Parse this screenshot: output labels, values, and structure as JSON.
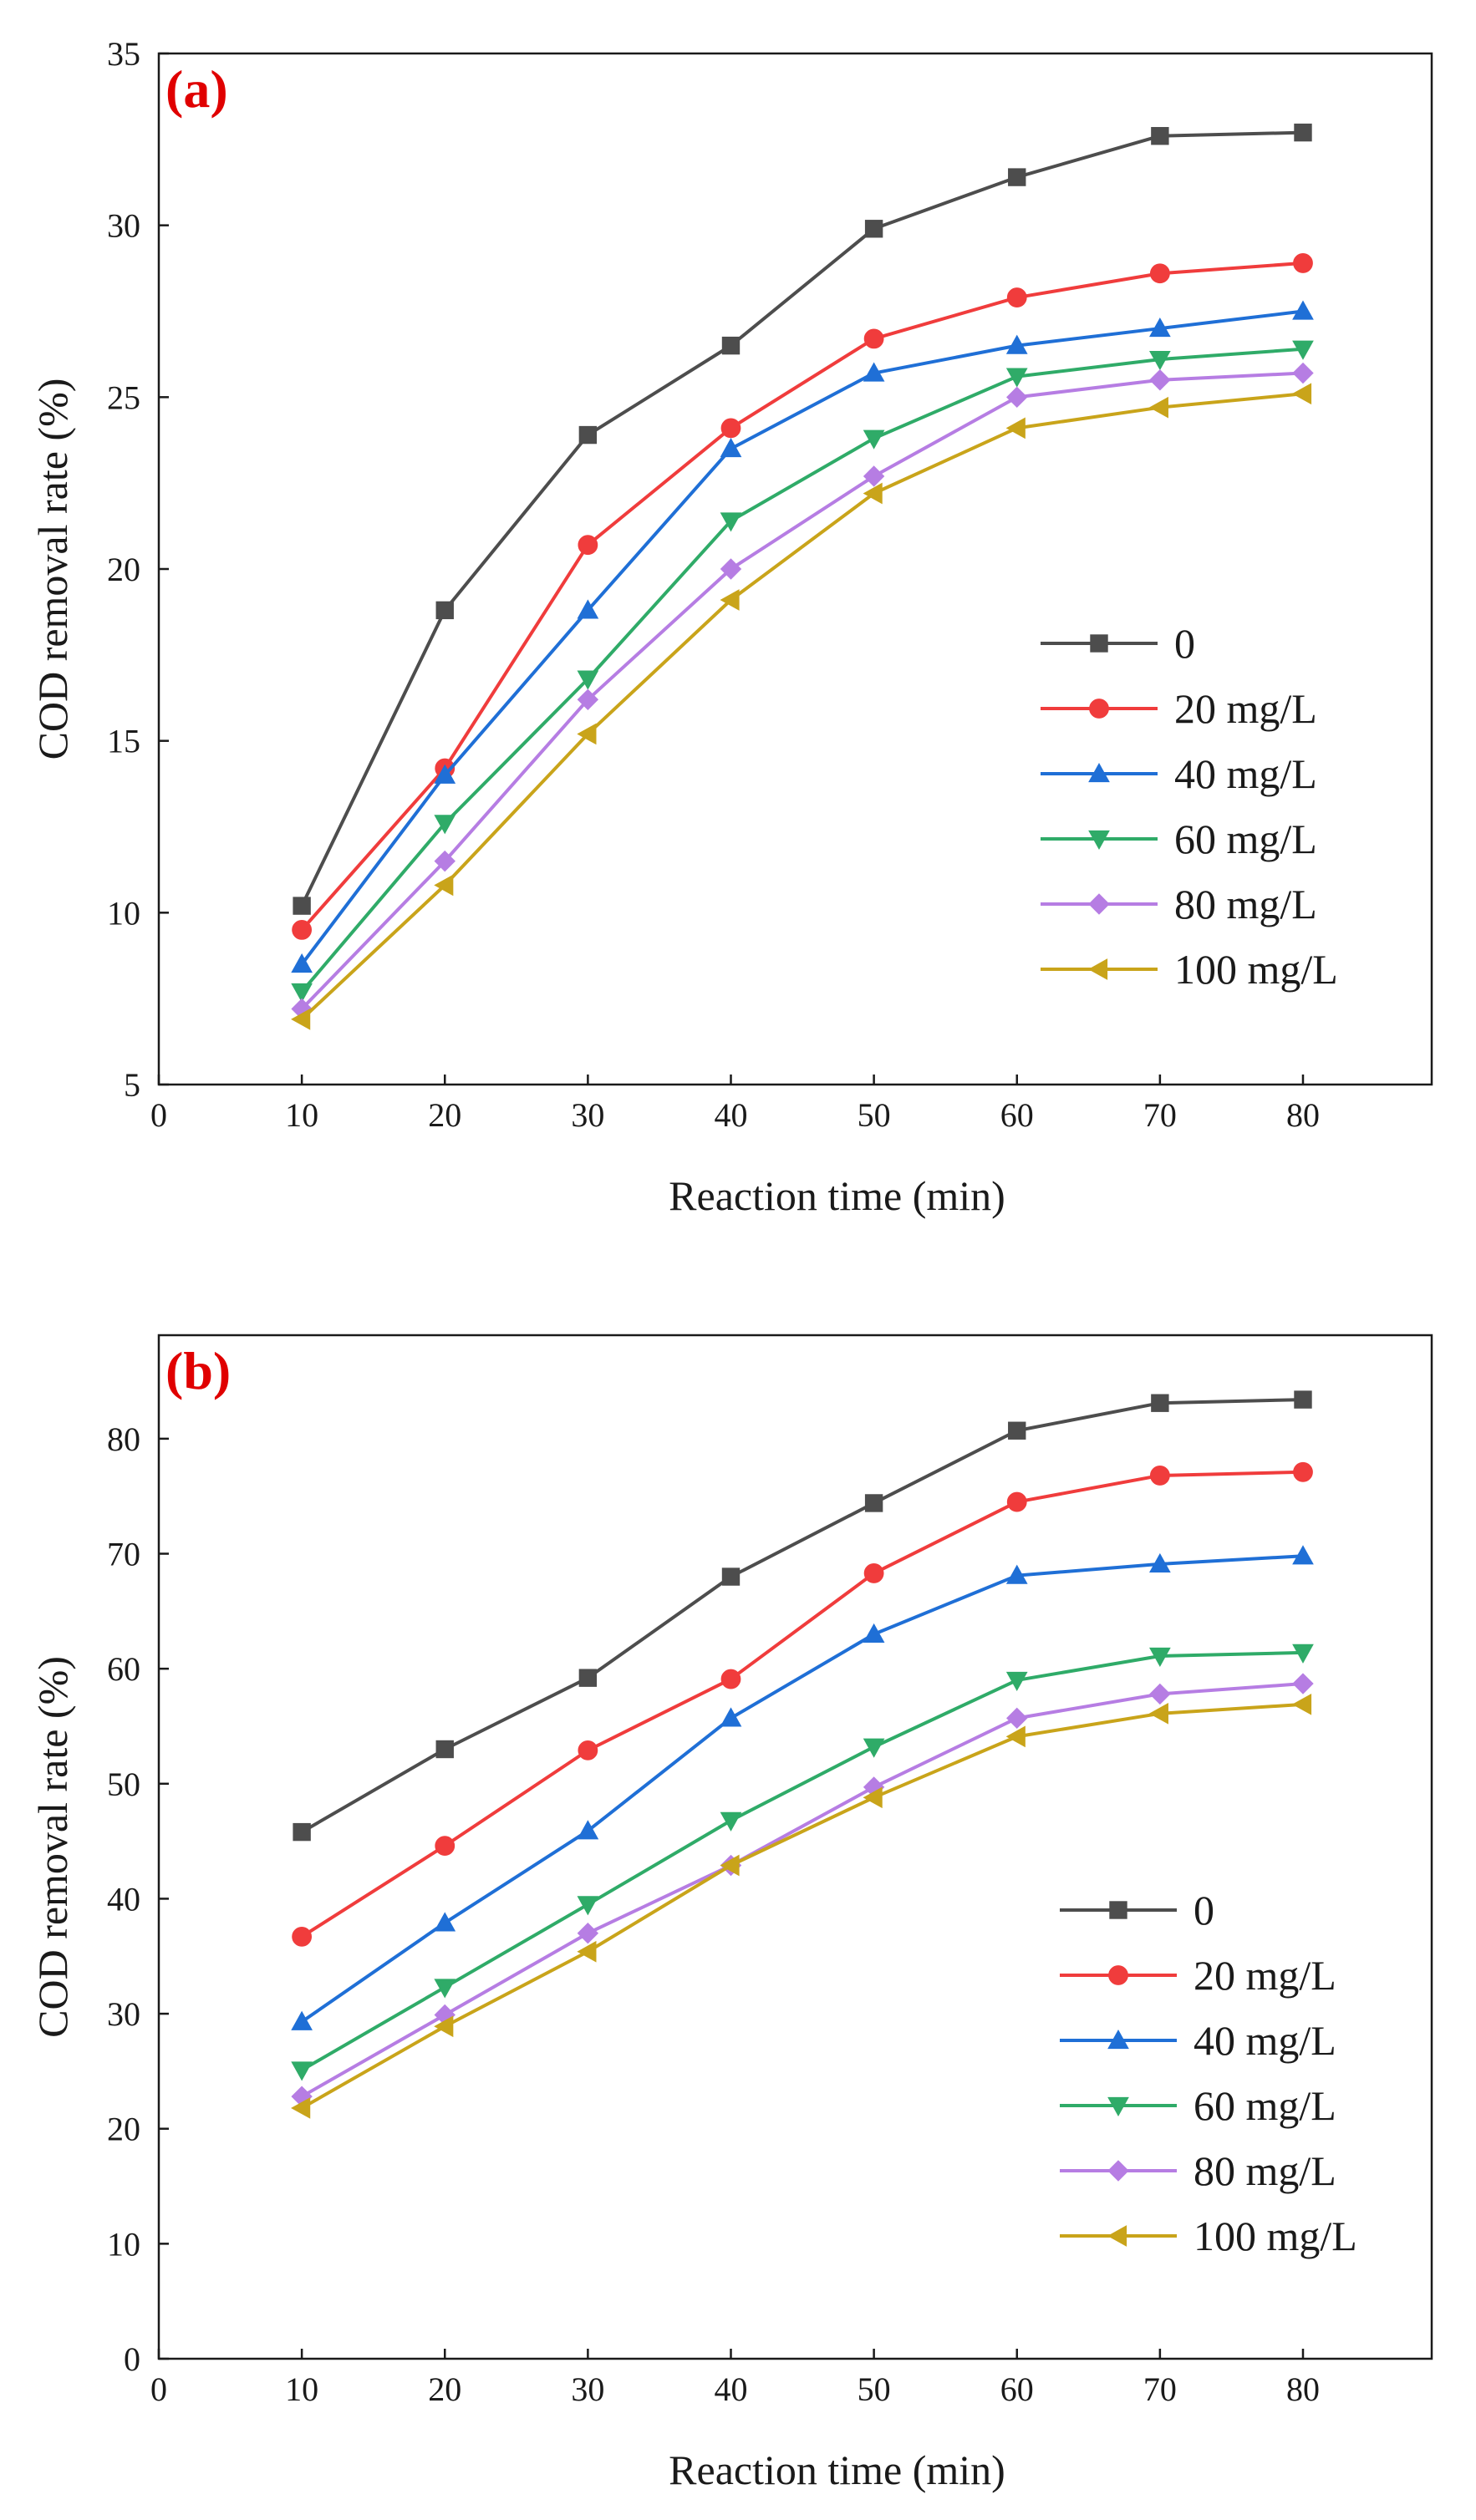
{
  "figure": {
    "panels": [
      "a",
      "b"
    ]
  },
  "chart_data": [
    {
      "type": "line",
      "panel_label": "(a)",
      "panel_label_color": "#e00000",
      "xlabel": "Reaction time (min)",
      "ylabel": "COD removal rate (%)",
      "xlim": [
        0,
        89
      ],
      "ylim": [
        5,
        35
      ],
      "xticks": [
        0,
        10,
        20,
        30,
        40,
        50,
        60,
        70,
        80
      ],
      "yticks": [
        5,
        10,
        15,
        20,
        25,
        30,
        35
      ],
      "grid": false,
      "legend_position": "right",
      "x": [
        10,
        20,
        30,
        40,
        50,
        60,
        70,
        80
      ],
      "series": [
        {
          "name": "0",
          "marker": "square",
          "color": "#4d4d4d",
          "values": [
            10.2,
            18.8,
            23.9,
            26.5,
            29.9,
            31.4,
            32.6,
            32.7
          ]
        },
        {
          "name": "20 mg/L",
          "marker": "circle",
          "color": "#f03c3c",
          "values": [
            9.5,
            14.2,
            20.7,
            24.1,
            26.7,
            27.9,
            28.6,
            28.9
          ]
        },
        {
          "name": "40 mg/L",
          "marker": "triangle-up",
          "color": "#1f6fd6",
          "values": [
            8.5,
            14.0,
            18.8,
            23.5,
            25.7,
            26.5,
            27.0,
            27.5
          ]
        },
        {
          "name": "60 mg/L",
          "marker": "triangle-down",
          "color": "#2fab68",
          "values": [
            7.7,
            12.6,
            16.8,
            21.4,
            23.8,
            25.6,
            26.1,
            26.4
          ]
        },
        {
          "name": "80 mg/L",
          "marker": "diamond",
          "color": "#b67de3",
          "values": [
            7.2,
            11.5,
            16.2,
            20.0,
            22.7,
            25.0,
            25.5,
            25.7
          ]
        },
        {
          "name": "100 mg/L",
          "marker": "triangle-left",
          "color": "#c9a41a",
          "values": [
            6.9,
            10.8,
            15.2,
            19.1,
            22.2,
            24.1,
            24.7,
            25.1
          ]
        }
      ]
    },
    {
      "type": "line",
      "panel_label": "(b)",
      "panel_label_color": "#e00000",
      "xlabel": "Reaction time (min)",
      "ylabel": "COD removal rate (%)",
      "xlim": [
        0,
        89
      ],
      "ylim": [
        0,
        89
      ],
      "xticks": [
        0,
        10,
        20,
        30,
        40,
        50,
        60,
        70,
        80
      ],
      "yticks": [
        0,
        10,
        20,
        30,
        40,
        50,
        60,
        70,
        80
      ],
      "grid": false,
      "legend_position": "bottom-right",
      "x": [
        10,
        20,
        30,
        40,
        50,
        60,
        70,
        80
      ],
      "series": [
        {
          "name": "0",
          "marker": "square",
          "color": "#4d4d4d",
          "values": [
            45.8,
            53.0,
            59.2,
            68.0,
            74.4,
            80.7,
            83.1,
            83.4
          ]
        },
        {
          "name": "20 mg/L",
          "marker": "circle",
          "color": "#f03c3c",
          "values": [
            36.7,
            44.6,
            52.9,
            59.1,
            68.3,
            74.5,
            76.8,
            77.1
          ]
        },
        {
          "name": "40 mg/L",
          "marker": "triangle-up",
          "color": "#1f6fd6",
          "values": [
            29.3,
            37.9,
            45.9,
            55.7,
            63.0,
            68.1,
            69.1,
            69.8
          ]
        },
        {
          "name": "60 mg/L",
          "marker": "triangle-down",
          "color": "#2fab68",
          "values": [
            25.1,
            32.3,
            39.5,
            46.8,
            53.2,
            59.0,
            61.1,
            61.4
          ]
        },
        {
          "name": "80 mg/L",
          "marker": "diamond",
          "color": "#b67de3",
          "values": [
            22.8,
            29.9,
            37.0,
            42.9,
            49.7,
            55.7,
            57.8,
            58.7
          ]
        },
        {
          "name": "100 mg/L",
          "marker": "triangle-left",
          "color": "#c9a41a",
          "values": [
            21.8,
            28.9,
            35.4,
            42.9,
            48.8,
            54.1,
            56.1,
            56.9
          ]
        }
      ]
    }
  ]
}
